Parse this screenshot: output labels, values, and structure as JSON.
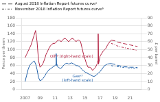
{
  "chart_data": {
    "type": "line",
    "ylabel": "Pence per therm",
    "y2label": "£ per barrel",
    "xlim": [
      2006.5,
      2022.5
    ],
    "xticks": [
      2007,
      {
        "value": 2009,
        "label": "09"
      },
      {
        "value": 2011,
        "label": "11"
      },
      {
        "value": 2013,
        "label": "13"
      },
      {
        "value": 2015,
        "label": "15"
      },
      {
        "value": 2017,
        "label": "17"
      },
      {
        "value": 2019,
        "label": "19"
      },
      {
        "value": 2021,
        "label": "21"
      }
    ],
    "ylim": [
      0,
      180
    ],
    "yticks": [
      0,
      20,
      40,
      60,
      80,
      100,
      120,
      140,
      160,
      180
    ],
    "y2lim": [
      0,
      90
    ],
    "y2ticks": [
      0,
      10,
      20,
      30,
      40,
      50,
      60,
      70,
      80,
      90
    ],
    "grid": true,
    "legend": "upper left",
    "annotations": [
      {
        "text": "Gasᵃ³\n(left-hand scale)",
        "x": 2014.0,
        "y": 38,
        "axis": "y",
        "color": "#1e5fa8"
      },
      {
        "text": "Oilᵇ³ (right-hand scale)",
        "x": 2013.2,
        "y": 44,
        "axis": "y2",
        "color": "#b22040"
      }
    ],
    "series": [
      {
        "color": "#1e5fa8",
        "line_style": "solid",
        "axis": "y",
        "x": [
          2007.0,
          2007.2,
          2007.4,
          2007.6,
          2007.8,
          2008.0,
          2008.2,
          2008.4,
          2008.6,
          2008.8,
          2009.0,
          2009.2,
          2009.4,
          2009.6,
          2009.8,
          2010.0,
          2010.2,
          2010.4,
          2010.6,
          2010.8,
          2011.0,
          2011.1,
          2011.15,
          2011.2,
          2011.25,
          2011.3,
          2011.5,
          2011.7,
          2011.9,
          2012.0,
          2012.2,
          2012.4,
          2012.6,
          2012.8,
          2013.0,
          2013.2,
          2013.4,
          2013.6,
          2013.8,
          2014.0,
          2014.2,
          2014.4,
          2014.6,
          2014.8,
          2015.0,
          2015.2,
          2015.4,
          2015.6,
          2015.8,
          2016.0,
          2016.2,
          2016.4,
          2016.6,
          2016.8,
          2017.0,
          2017.2,
          2017.4,
          2017.6,
          2017.8,
          2018.0,
          2018.3,
          2018.5
        ],
        "values": [
          20,
          35,
          50,
          60,
          65,
          68,
          72,
          65,
          50,
          30,
          22,
          24,
          28,
          33,
          40,
          45,
          50,
          52,
          55,
          58,
          60,
          63,
          90,
          63,
          60,
          58,
          55,
          53,
          55,
          58,
          62,
          65,
          66,
          64,
          65,
          67,
          65,
          63,
          60,
          60,
          58,
          55,
          50,
          47,
          44,
          42,
          40,
          38,
          36,
          34,
          33,
          35,
          38,
          42,
          45,
          50,
          55,
          60,
          62,
          64,
          65,
          65
        ]
      },
      {
        "name": "August 2018 Inflation Report futures curveᵃ",
        "color": "#1e5fa8",
        "line_style": "dashed",
        "axis": "y",
        "x": [
          2018.5,
          2019.0,
          2019.5,
          2020.0,
          2020.5,
          2021.0,
          2021.5,
          2022.0
        ],
        "values": [
          65,
          63,
          60,
          58,
          57,
          56,
          56,
          55
        ]
      },
      {
        "name": "November 2018 Inflation Report futures curveᵇ",
        "color": "#1e5fa8",
        "line_style": "dashdot",
        "axis": "y",
        "x": [
          2018.5,
          2019.0,
          2019.5,
          2020.0,
          2020.5,
          2021.0,
          2021.5,
          2022.0
        ],
        "values": [
          60,
          58,
          57,
          56,
          55,
          54,
          54,
          53
        ]
      },
      {
        "color": "#b22040",
        "line_style": "solid",
        "axis": "y2",
        "x": [
          2007.0,
          2007.2,
          2007.4,
          2007.6,
          2007.8,
          2008.0,
          2008.2,
          2008.4,
          2008.6,
          2008.8,
          2009.0,
          2009.2,
          2009.4,
          2009.6,
          2009.8,
          2010.0,
          2010.2,
          2010.4,
          2010.6,
          2010.8,
          2011.0,
          2011.2,
          2011.4,
          2011.6,
          2011.8,
          2012.0,
          2012.2,
          2012.4,
          2012.6,
          2012.8,
          2013.0,
          2013.2,
          2013.4,
          2013.6,
          2013.8,
          2014.0,
          2014.2,
          2014.4,
          2014.6,
          2014.8,
          2015.0,
          2015.2,
          2015.4,
          2015.6,
          2015.8,
          2016.0,
          2016.2,
          2016.4,
          2016.6,
          2016.7,
          2016.75,
          2016.8,
          2017.0,
          2017.2,
          2017.4,
          2017.6,
          2017.8,
          2018.0,
          2018.3,
          2018.5
        ],
        "values": [
          40,
          44,
          48,
          52,
          56,
          62,
          68,
          74,
          60,
          36,
          28,
          30,
          33,
          38,
          44,
          48,
          52,
          55,
          57,
          58,
          58,
          60,
          62,
          62,
          60,
          62,
          64,
          64,
          62,
          60,
          62,
          64,
          64,
          62,
          60,
          62,
          62,
          60,
          52,
          44,
          38,
          32,
          28,
          28,
          27,
          24,
          26,
          28,
          32,
          36,
          70,
          32,
          42,
          45,
          48,
          50,
          52,
          56,
          60,
          62
        ]
      },
      {
        "name": "August 2018 Inflation Report futures curveᵃ",
        "color": "#b22040",
        "line_style": "dashed",
        "axis": "y2",
        "x": [
          2018.5,
          2019.0,
          2019.5,
          2020.0,
          2020.5,
          2021.0,
          2021.5,
          2022.0
        ],
        "values": [
          62,
          61,
          59,
          58,
          57,
          56,
          55,
          54
        ]
      },
      {
        "name": "November 2018 Inflation Report futures curveᵇ",
        "color": "#b22040",
        "line_style": "dashdot",
        "axis": "y2",
        "x": [
          2018.5,
          2019.0,
          2019.5,
          2020.0,
          2020.5,
          2021.0,
          2021.5,
          2022.0
        ],
        "values": [
          58,
          56,
          54,
          53,
          52,
          51,
          50,
          49
        ]
      }
    ]
  }
}
